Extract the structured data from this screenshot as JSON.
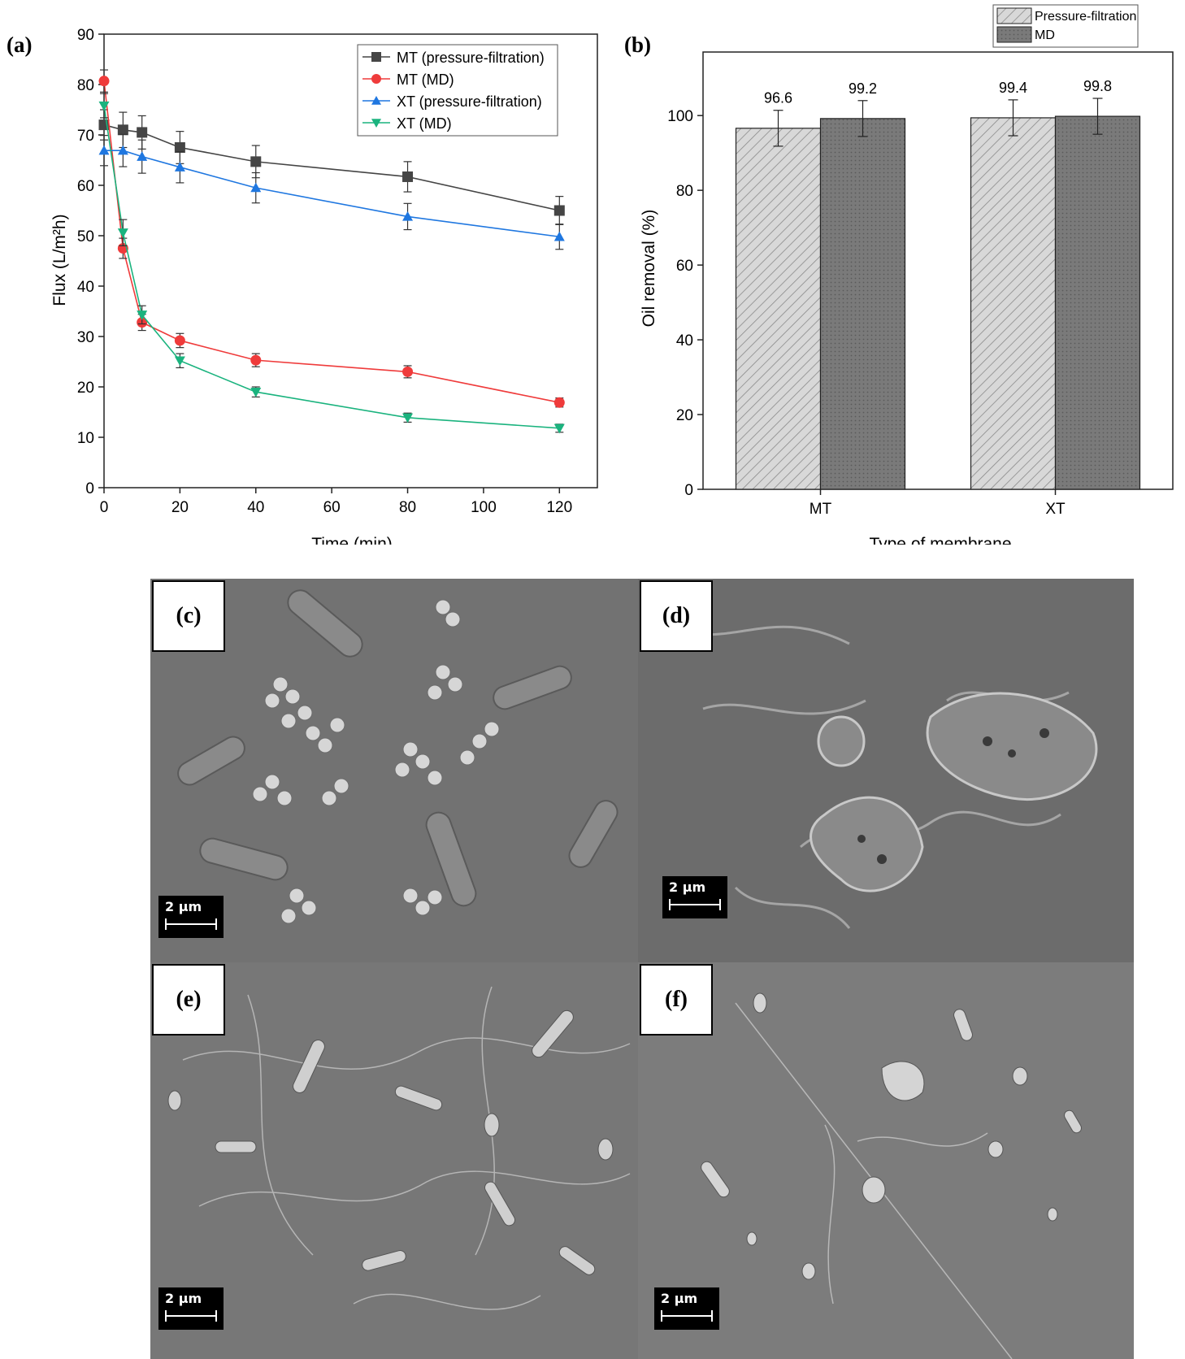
{
  "chart_data": [
    {
      "panel": "(a)",
      "type": "line",
      "xlabel": "Time (min)",
      "ylabel": "Flux (L/m²h)",
      "xlim": [
        0,
        130
      ],
      "ylim": [
        0,
        90
      ],
      "xticks": [
        0,
        20,
        40,
        60,
        80,
        100,
        120
      ],
      "yticks": [
        0,
        10,
        20,
        30,
        40,
        50,
        60,
        70,
        80,
        90
      ],
      "x": [
        0,
        5,
        10,
        20,
        40,
        80,
        120
      ],
      "legend_position": "top-right",
      "series": [
        {
          "name": "MT (pressure-filtration)",
          "color": "#454545",
          "marker": "square",
          "values": [
            72.0,
            71.0,
            70.5,
            67.5,
            64.7,
            61.7,
            55.0
          ],
          "errors": [
            3.0,
            3.5,
            3.3,
            3.2,
            3.2,
            3.0,
            2.8
          ]
        },
        {
          "name": "MT (MD)",
          "color": "#ef3b3b",
          "marker": "circle",
          "values": [
            80.7,
            47.5,
            32.8,
            29.2,
            25.3,
            23.0,
            16.9
          ],
          "errors": [
            2.2,
            2.0,
            1.6,
            1.4,
            1.3,
            1.2,
            0.9
          ]
        },
        {
          "name": "XT (pressure-filtration)",
          "color": "#1f77e0",
          "marker": "triangle-up",
          "values": [
            66.9,
            66.9,
            65.7,
            63.6,
            59.5,
            53.8,
            49.8
          ],
          "errors": [
            3.0,
            3.2,
            3.3,
            3.1,
            3.0,
            2.6,
            2.5
          ]
        },
        {
          "name": "XT (MD)",
          "color": "#1ab37e",
          "marker": "triangle-down",
          "values": [
            75.8,
            50.6,
            34.3,
            25.2,
            19.0,
            13.9,
            11.8
          ],
          "errors": [
            2.4,
            2.6,
            1.8,
            1.4,
            1.0,
            0.9,
            0.8
          ]
        }
      ]
    },
    {
      "panel": "(b)",
      "type": "bar",
      "xlabel": "Type of membrane",
      "ylabel": "Oil removal (%)",
      "ylim": [
        0,
        117
      ],
      "yticks": [
        0,
        20,
        40,
        60,
        80,
        100
      ],
      "categories": [
        "MT",
        "XT"
      ],
      "legend_position": "top-right",
      "series": [
        {
          "name": "Pressure-filtration",
          "pattern": "diagonal-hatch",
          "color": "#cfcfcf",
          "values": [
            96.6,
            99.4
          ],
          "errors": [
            4.8,
            4.8
          ]
        },
        {
          "name": "MD",
          "pattern": "dots",
          "color": "#747474",
          "values": [
            99.2,
            99.8
          ],
          "errors": [
            4.8,
            4.8
          ]
        }
      ],
      "data_labels": [
        "96.6",
        "99.2",
        "99.4",
        "99.8"
      ]
    }
  ],
  "micrographs": [
    {
      "label": "(c)",
      "scale": "2 μm"
    },
    {
      "label": "(d)",
      "scale": "2 μm"
    },
    {
      "label": "(e)",
      "scale": "2 μm"
    },
    {
      "label": "(f)",
      "scale": "2 μm"
    }
  ]
}
